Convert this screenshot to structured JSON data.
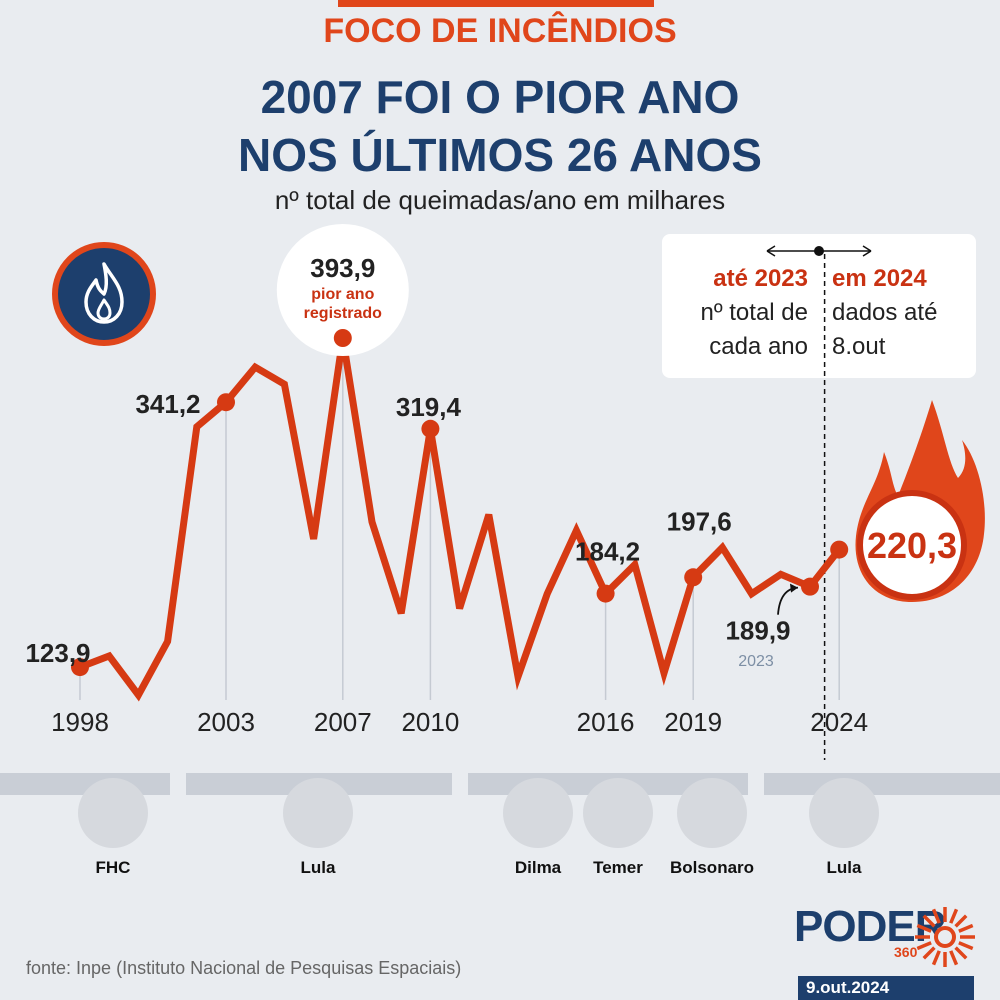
{
  "header": {
    "kicker": "FOCO DE INCÊNDIOS",
    "title_line1": "2007 FOI O PIOR ANO",
    "title_line2": "NOS ÚLTIMOS 26 ANOS",
    "subtitle": "nº total de queimadas/ano em milhares"
  },
  "legend": {
    "left_head": "até 2023",
    "left_line1": "nº total de",
    "left_line2": "cada ano",
    "right_head": "em 2024",
    "right_line1": "dados até",
    "right_line2": "8.out"
  },
  "chart_data": {
    "type": "line",
    "unit": "milhares",
    "x": [
      1998,
      1999,
      2000,
      2001,
      2002,
      2003,
      2004,
      2005,
      2006,
      2007,
      2008,
      2009,
      2010,
      2011,
      2012,
      2013,
      2014,
      2015,
      2016,
      2017,
      2018,
      2019,
      2020,
      2021,
      2022,
      2023,
      2024
    ],
    "values": [
      123.9,
      133.0,
      101.0,
      145.0,
      321.0,
      341.2,
      370.0,
      356.0,
      229.0,
      393.9,
      243.0,
      168.0,
      319.4,
      172.0,
      249.0,
      116.0,
      184.0,
      236.0,
      184.2,
      208.0,
      119.0,
      197.6,
      222.0,
      184.0,
      200.0,
      189.9,
      220.3
    ],
    "tick_labels": [
      "1998",
      "2003",
      "2007",
      "2010",
      "2016",
      "2019",
      "2024"
    ],
    "ylim": [
      100,
      400
    ],
    "grid": "vertical lines at labeled years",
    "line_color": "#d63a13",
    "highlight": {
      "label_1998": "123,9",
      "label_2003": "341,2",
      "label_2007": "393,9",
      "label_2007_note1": "pior ano",
      "label_2007_note2": "registrado",
      "label_2010": "319,4",
      "label_2016": "184,2",
      "label_2019": "197,6",
      "label_2023": "189,9",
      "label_2023_year": "2023",
      "label_2024": "220,3"
    }
  },
  "presidents": [
    {
      "name": "FHC"
    },
    {
      "name": "Lula"
    },
    {
      "name": "Dilma"
    },
    {
      "name": "Temer"
    },
    {
      "name": "Bolsonaro"
    },
    {
      "name": "Lula"
    }
  ],
  "footer": {
    "source": "fonte: Inpe (Instituto Nacional de Pesquisas Espaciais)",
    "logo": "PODER",
    "logo_sub": "360",
    "date": "9.out.2024"
  },
  "colors": {
    "accent": "#e0461b",
    "navy": "#1d3f6d",
    "line": "#d63a13",
    "background": "#e9ecf0"
  },
  "icons": [
    "flame-icon",
    "sun-logo-icon"
  ]
}
